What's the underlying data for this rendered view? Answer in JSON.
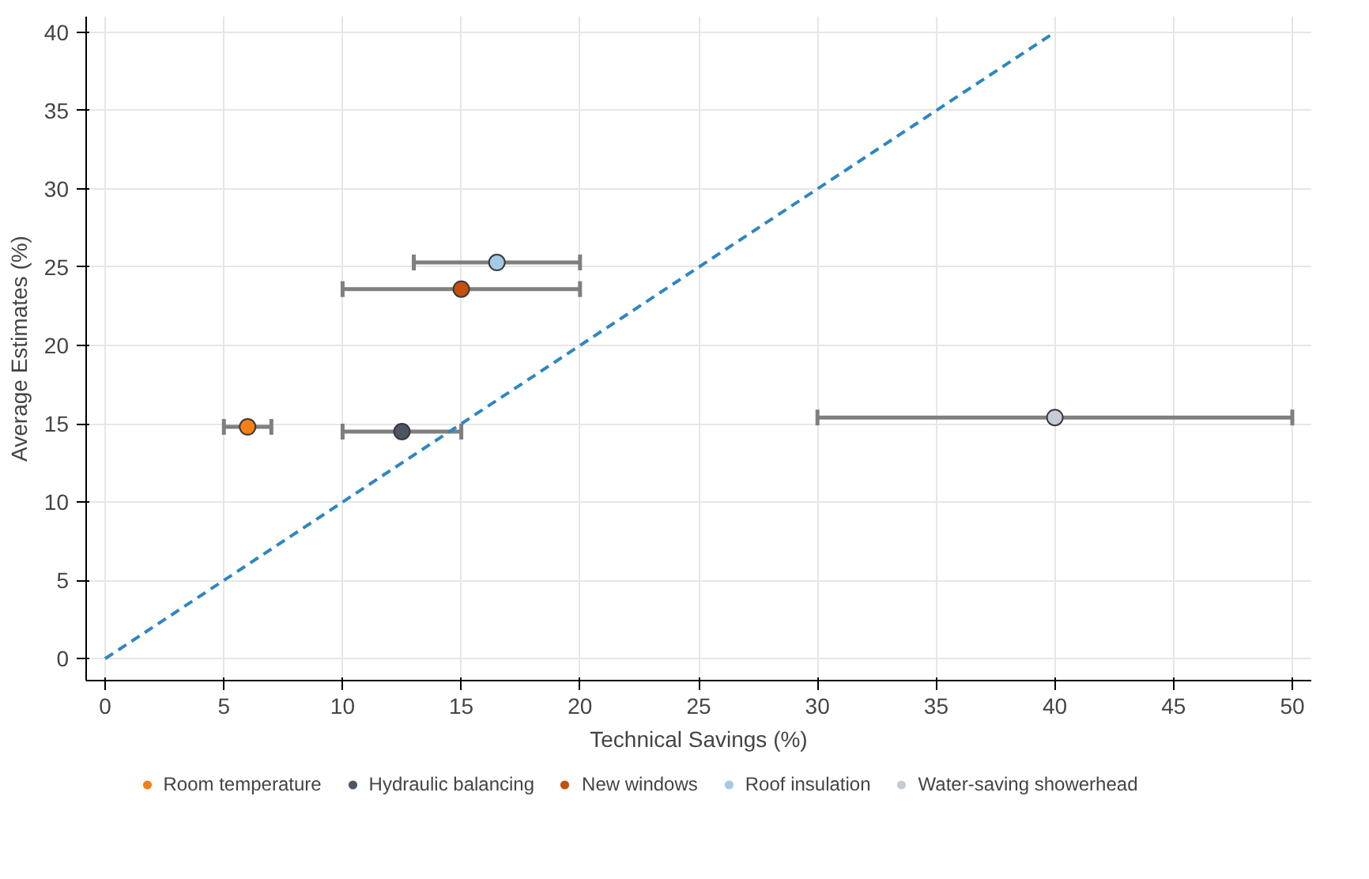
{
  "chart_data": {
    "type": "scatter",
    "xlabel": "Technical Savings (%)",
    "ylabel": "Average Estimates (%)",
    "xlim": [
      -0.8,
      50.8
    ],
    "ylim": [
      -1.4,
      41
    ],
    "xticks": [
      0,
      5,
      10,
      15,
      20,
      25,
      30,
      35,
      40,
      45,
      50
    ],
    "yticks": [
      0,
      5,
      10,
      15,
      20,
      25,
      30,
      35,
      40
    ],
    "grid": true,
    "legend": "bottom",
    "marker": "circle",
    "series": [
      {
        "type": "line",
        "color": "#2e86c1",
        "line_style": "dashed",
        "marker": "none",
        "x": [
          0,
          40
        ],
        "values": [
          0,
          40
        ]
      },
      {
        "name": "Room temperature",
        "color": "#f57f17",
        "x": [
          6
        ],
        "values": [
          14.8
        ],
        "xerrors": [
          [
            5,
            7
          ]
        ]
      },
      {
        "name": "Hydraulic balancing",
        "color": "#4d5563",
        "x": [
          12.5
        ],
        "values": [
          14.5
        ],
        "xerrors": [
          [
            10,
            15
          ]
        ]
      },
      {
        "name": "New windows",
        "color": "#c4500c",
        "x": [
          15
        ],
        "values": [
          23.6
        ],
        "xerrors": [
          [
            10,
            20
          ]
        ]
      },
      {
        "name": "Roof insulation",
        "color": "#a3cbe6",
        "x": [
          16.5
        ],
        "values": [
          25.3
        ],
        "xerrors": [
          [
            13,
            20
          ]
        ]
      },
      {
        "name": "Water-saving showerhead",
        "color": "#c5ccd8",
        "x": [
          40
        ],
        "values": [
          15.4
        ],
        "xerrors": [
          [
            30,
            50
          ]
        ]
      }
    ]
  }
}
